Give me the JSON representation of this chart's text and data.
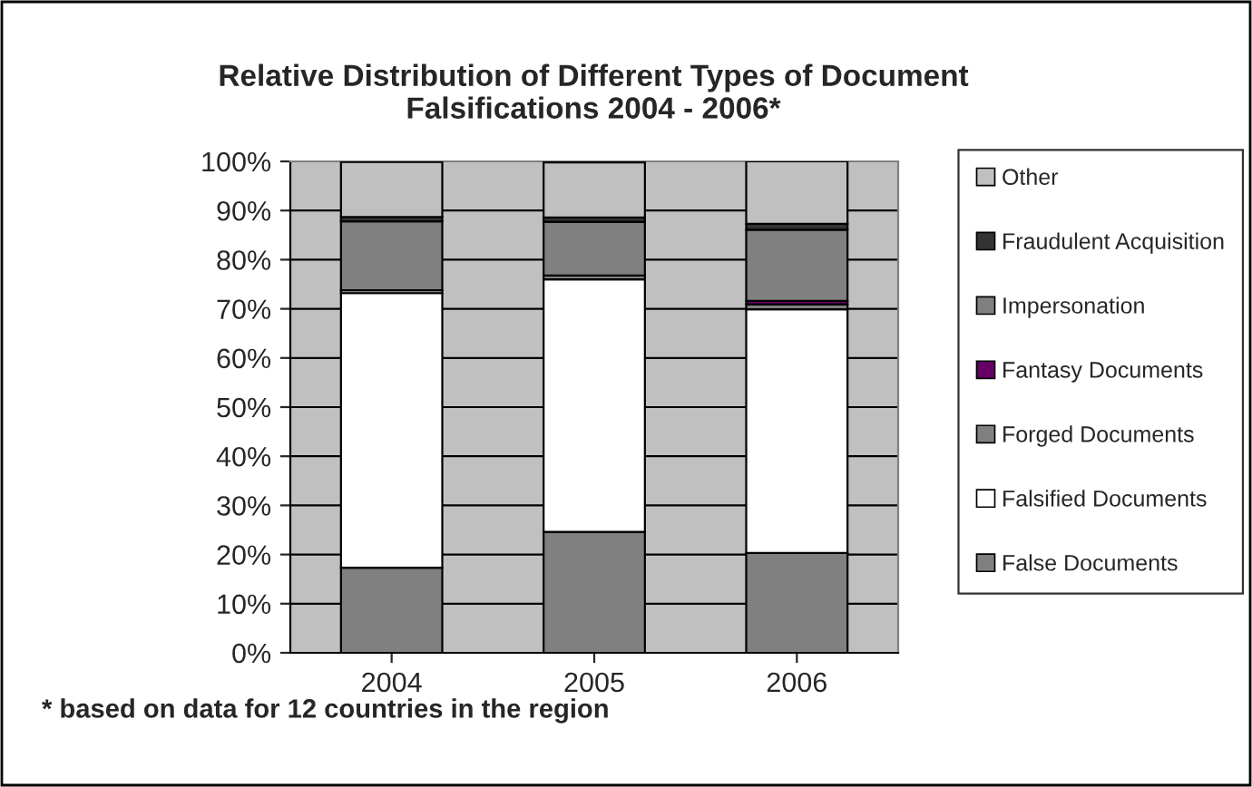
{
  "chart_data": {
    "type": "bar",
    "title": "Relative Distribution of Different Types of Document\nFalsifications 2004 - 2006*",
    "categories": [
      "2004",
      "2005",
      "2006"
    ],
    "stacked": true,
    "series": [
      {
        "name": "False Documents",
        "color": "#808080",
        "values": [
          17.3,
          24.6,
          20.3
        ]
      },
      {
        "name": "Falsified Documents",
        "color": "#ffffff",
        "values": [
          55.9,
          51.4,
          49.6
        ]
      },
      {
        "name": "Forged Documents",
        "color": "#808080",
        "values": [
          0.6,
          0.8,
          1.0
        ]
      },
      {
        "name": "Fantasy Documents",
        "color": "#660066",
        "values": [
          null,
          null,
          0.7
        ]
      },
      {
        "name": "Impersonation",
        "color": "#808080",
        "values": [
          14.0,
          10.9,
          14.5
        ]
      },
      {
        "name": "Fraudulent Acquisition",
        "color": "#333333",
        "values": [
          0.9,
          0.9,
          1.2
        ]
      },
      {
        "name": "Other",
        "color": "#c0c0c0",
        "values": [
          11.2,
          11.2,
          12.7
        ]
      }
    ],
    "ylim": [
      0,
      100
    ],
    "yticks": [
      {
        "value": 0,
        "label": "0%"
      },
      {
        "value": 10,
        "label": "10%"
      },
      {
        "value": 20,
        "label": "20%"
      },
      {
        "value": 30,
        "label": "30%"
      },
      {
        "value": 40,
        "label": "40%"
      },
      {
        "value": 50,
        "label": "50%"
      },
      {
        "value": 60,
        "label": "60%"
      },
      {
        "value": 70,
        "label": "70%"
      },
      {
        "value": 80,
        "label": "80%"
      },
      {
        "value": 90,
        "label": "90%"
      },
      {
        "value": 100,
        "label": "100%"
      }
    ],
    "grid": "y",
    "legend": "right",
    "annotations": [
      "* based on data for 12 countries in the region"
    ]
  }
}
